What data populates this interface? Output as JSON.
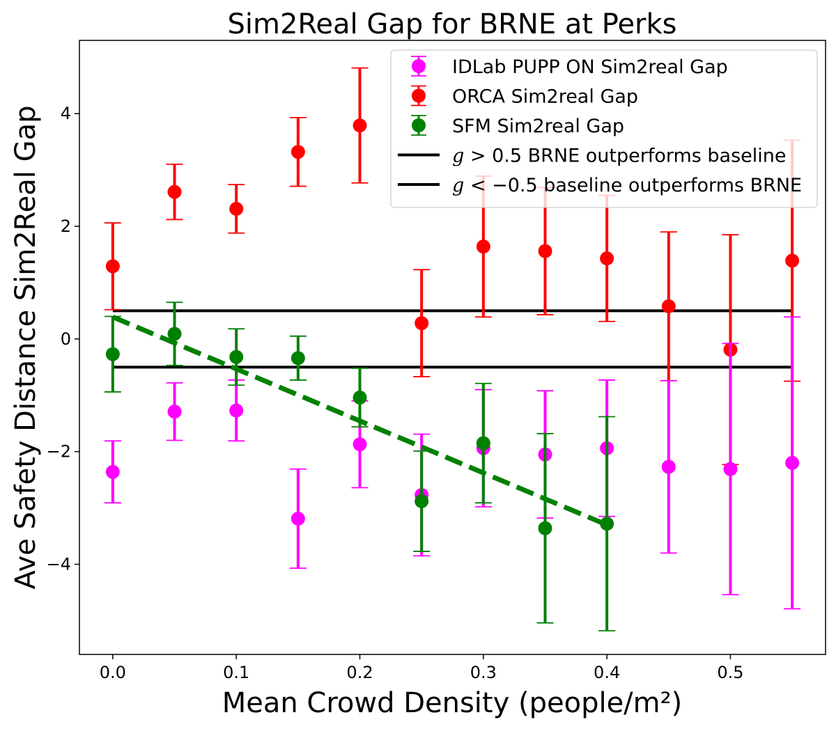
{
  "chart_data": {
    "type": "scatter",
    "title": "Sim2Real Gap for BRNE at Perks",
    "xlabel": "Mean Crowd Density (people/m²)",
    "ylabel": "Ave Safety Distance Sim2Real Gap",
    "xlim": [
      -0.027,
      0.577
    ],
    "ylim": [
      -5.6,
      5.3
    ],
    "x_ticks": [
      0.0,
      0.1,
      0.2,
      0.3,
      0.4,
      0.5
    ],
    "x_tick_labels": [
      "0.0",
      "0.1",
      "0.2",
      "0.3",
      "0.4",
      "0.5"
    ],
    "y_ticks": [
      -4,
      -2,
      0,
      2,
      4
    ],
    "y_tick_labels": [
      "−4",
      "−2",
      "0",
      "2",
      "4"
    ],
    "grid": false,
    "legend_position": "top-right",
    "series": [
      {
        "name": "IDLab PUPP ON Sim2real Gap",
        "kind": "errorbar",
        "color": "#ff00ff",
        "x": [
          0.0,
          0.05,
          0.1,
          0.15,
          0.2,
          0.25,
          0.3,
          0.35,
          0.4,
          0.45,
          0.5,
          0.55
        ],
        "y": [
          -2.36,
          -1.29,
          -1.27,
          -3.19,
          -1.87,
          -2.77,
          -1.94,
          -2.05,
          -1.94,
          -2.27,
          -2.31,
          -2.2
        ],
        "yerr": [
          0.55,
          0.51,
          0.54,
          0.88,
          0.77,
          1.08,
          1.04,
          1.13,
          1.21,
          1.53,
          2.23,
          2.59
        ]
      },
      {
        "name": "ORCA Sim2real Gap",
        "kind": "errorbar",
        "color": "#ff0000",
        "x": [
          0.0,
          0.05,
          0.1,
          0.15,
          0.2,
          0.25,
          0.3,
          0.35,
          0.4,
          0.45,
          0.5,
          0.55
        ],
        "y": [
          1.29,
          2.61,
          2.31,
          3.32,
          3.79,
          0.28,
          1.64,
          1.56,
          1.43,
          0.58,
          -0.19,
          1.39
        ],
        "yerr": [
          0.77,
          0.49,
          0.43,
          0.61,
          1.02,
          0.95,
          1.25,
          1.13,
          1.12,
          1.32,
          2.04,
          2.14
        ]
      },
      {
        "name": "SFM Sim2real Gap",
        "kind": "errorbar",
        "color": "#008000",
        "x": [
          0.0,
          0.05,
          0.1,
          0.15,
          0.2,
          0.25,
          0.3,
          0.35,
          0.4
        ],
        "y": [
          -0.27,
          0.09,
          -0.32,
          -0.34,
          -1.04,
          -2.88,
          -1.85,
          -3.36,
          -3.28
        ],
        "yerr": [
          0.67,
          0.56,
          0.5,
          0.39,
          0.52,
          0.89,
          1.06,
          1.68,
          1.9
        ]
      },
      {
        "name": "",
        "kind": "dashed-line",
        "color": "#008000",
        "x": [
          0.0,
          0.4
        ],
        "y": [
          0.39,
          -3.3
        ]
      },
      {
        "name": "g > 0.5 BRNE outperforms baseline",
        "kind": "line",
        "color": "#000000",
        "x": [
          0.0,
          0.55
        ],
        "y": [
          0.5,
          0.5
        ]
      },
      {
        "name": "g < −0.5 baseline outperforms BRNE",
        "kind": "line",
        "color": "#000000",
        "x": [
          0.0,
          0.55
        ],
        "y": [
          -0.5,
          -0.5
        ]
      }
    ],
    "legend": [
      {
        "label_math": "",
        "label_text": "IDLab PUPP ON Sim2real Gap",
        "marker": "errorbar",
        "color": "#ff00ff"
      },
      {
        "label_math": "",
        "label_text": "ORCA Sim2real Gap",
        "marker": "errorbar",
        "color": "#ff0000"
      },
      {
        "label_math": "",
        "label_text": "SFM Sim2real Gap",
        "marker": "errorbar",
        "color": "#008000"
      },
      {
        "label_math": "g",
        "label_text": "> 0.5 BRNE outperforms baseline",
        "marker": "line",
        "color": "#000000"
      },
      {
        "label_math": "g",
        "label_text": "< −0.5 baseline outperforms BRNE",
        "marker": "line",
        "color": "#000000"
      }
    ]
  }
}
